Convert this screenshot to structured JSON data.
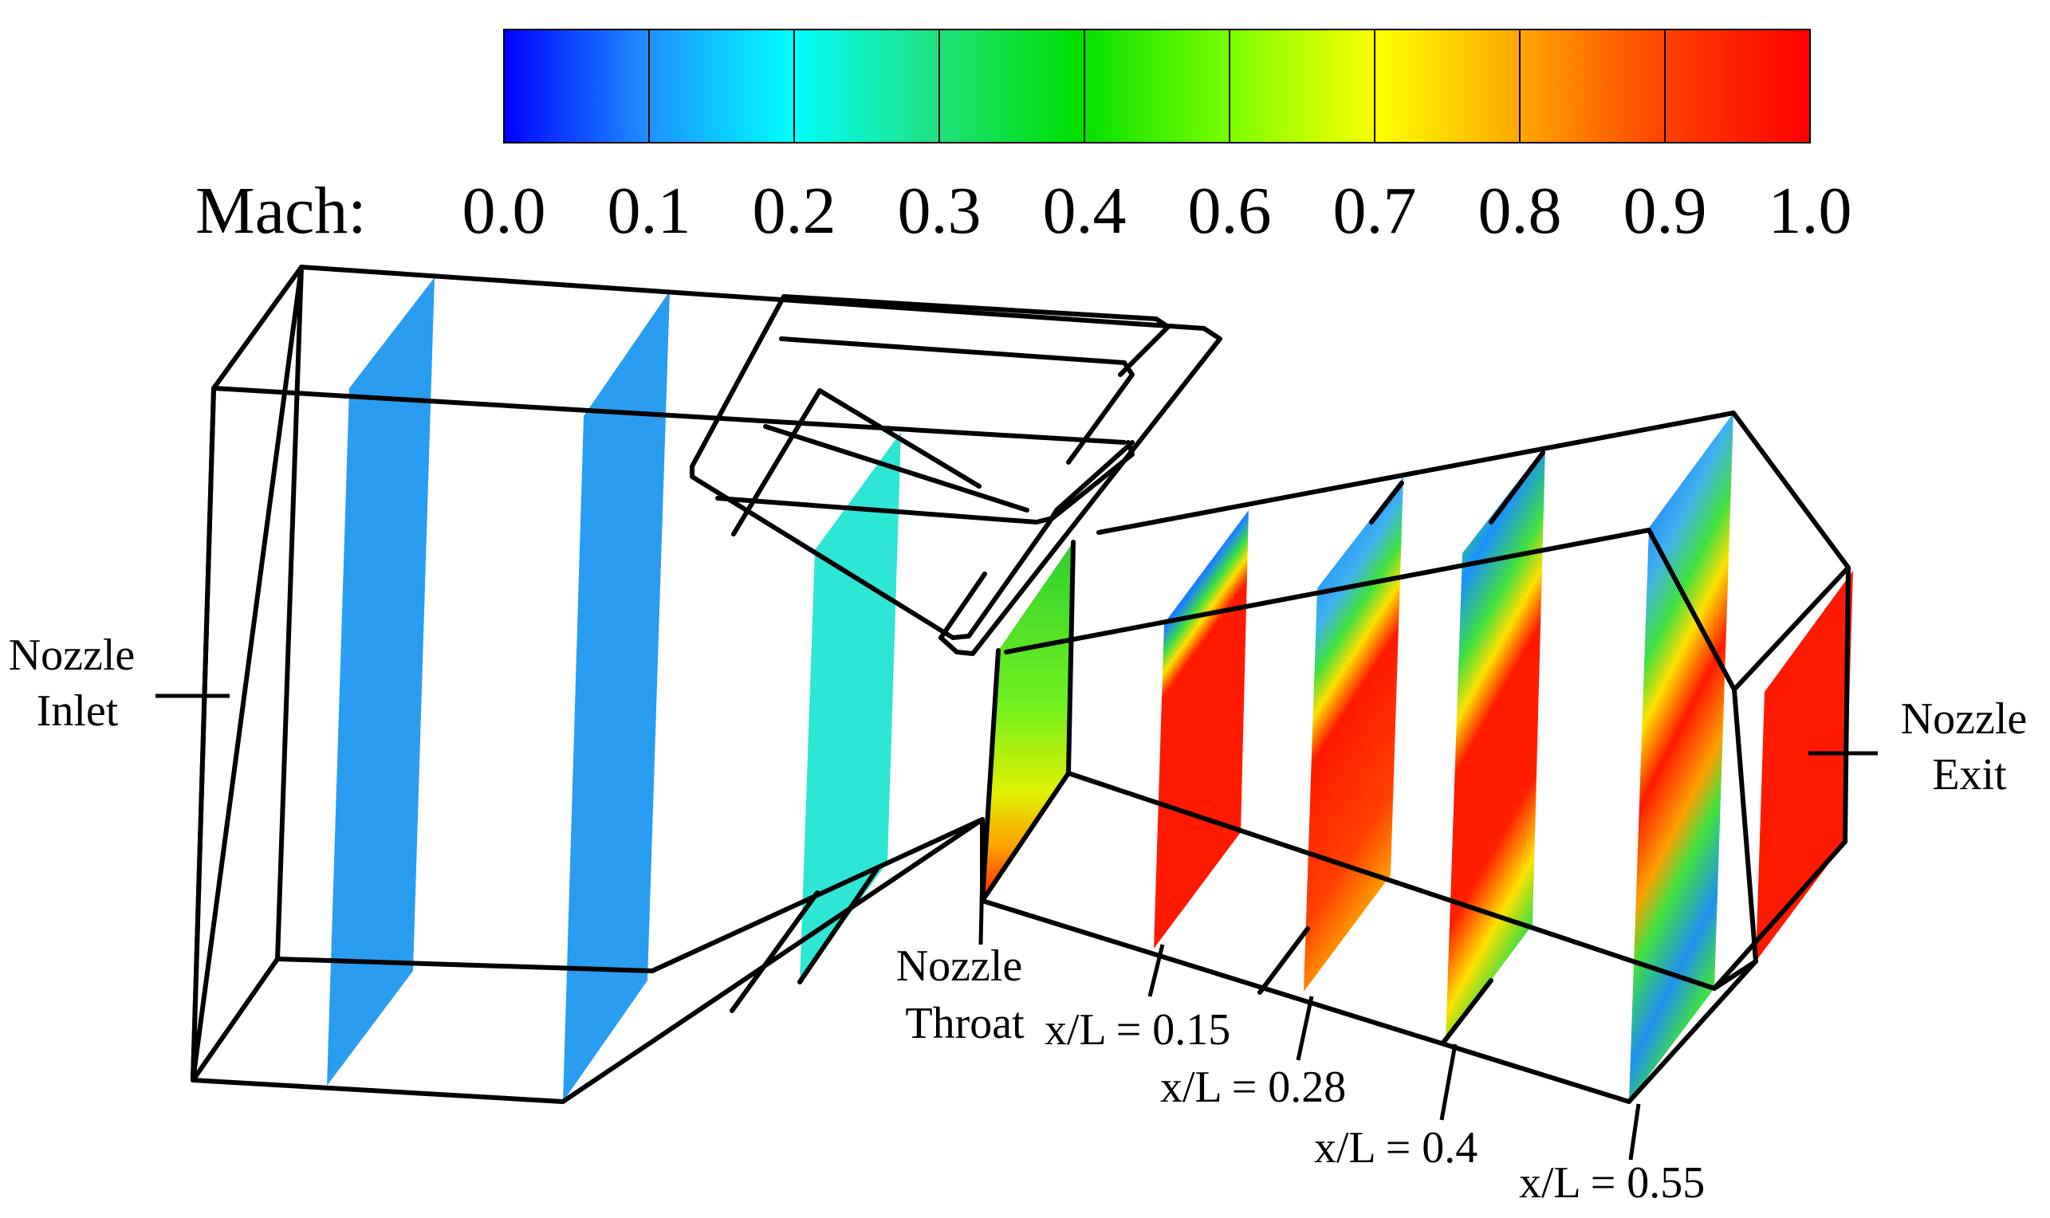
{
  "colorbar": {
    "variable_label": "Mach:",
    "tick_labels": [
      "0.0",
      "0.1",
      "0.2",
      "0.3",
      "0.4",
      "0.6",
      "0.7",
      "0.8",
      "0.9",
      "1.0"
    ],
    "gradient_colors": [
      "#0000ff",
      "#1e90ff",
      "#00ffff",
      "#20e080",
      "#00e000",
      "#80ff00",
      "#ffff00",
      "#ffa500",
      "#ff4000",
      "#ff0000"
    ]
  },
  "annotations": {
    "nozzle_inlet": [
      "Nozzle",
      "Inlet"
    ],
    "nozzle_exit": [
      "Nozzle",
      "Exit"
    ],
    "nozzle_throat": [
      "Nozzle",
      "Throat"
    ],
    "station_1": "x/L = 0.15",
    "station_2": "x/L  = 0.28",
    "station_3": "x/L = 0.4",
    "station_4": "x/L  = 0.55"
  },
  "slice_colors": {
    "inlet_slices": "#2a9df0",
    "converging_slice": "#2ee6d6",
    "high_mach": "#ff1a00",
    "low_mach": "#1a7cf0",
    "mid_mach": "#40e040",
    "yellow": "#ffe000"
  }
}
